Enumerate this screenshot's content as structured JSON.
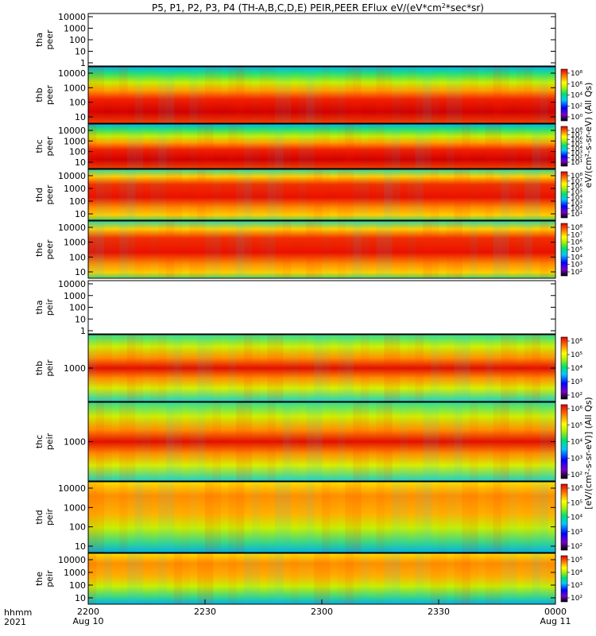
{
  "title": "P5, P1, P2, P3, P4 (TH-A,B,C,D,E) PEIR,PEER EFlux eV/(eV*cm²*sec*sr)",
  "title_parts": {
    "pre": "P5, P1, P2, P3, P4 (TH-A,B,C,D,E) PEIR,PEER EFlux eV/(eV*cm",
    "sup": "2",
    "post": "*sec*sr)"
  },
  "time_axis": {
    "label_line1": "hhmm",
    "label_line2": "2021",
    "ticks": [
      {
        "label": "2200",
        "sublabel": "Aug 10"
      },
      {
        "label": "2230",
        "sublabel": ""
      },
      {
        "label": "2300",
        "sublabel": ""
      },
      {
        "label": "2330",
        "sublabel": ""
      },
      {
        "label": "0000",
        "sublabel": "Aug 11"
      }
    ]
  },
  "colorbar_labels": {
    "electrons": "eV/(cm²-s-sr-eV) (All Qs)",
    "ions": "[eV/(cm²-s-sr-eV)] (All Qs)"
  },
  "chart_data": {
    "type": "heatmap",
    "title": "P5, P1, P2, P3, P4 (TH-A,B,C,D,E) PEIR,PEER EFlux eV/(eV*cm²*sec*sr)",
    "x": {
      "start": "2021-08-10 22:00",
      "end": "2021-08-11 00:00"
    },
    "panels": [
      {
        "id": "tha_peer",
        "label1": "tha",
        "label2": "peer",
        "type": "empty",
        "yscale": "log",
        "yticks": [
          "10000",
          "1000",
          "100",
          "10",
          "1"
        ],
        "colorbar": false
      },
      {
        "id": "thb_peer",
        "label1": "thb",
        "label2": "peer",
        "type": "electron",
        "yscale": "log",
        "yticks": [
          "10000",
          "1000",
          "100",
          "10"
        ],
        "colorbar": true,
        "cbar_ticks": [
          "10⁸",
          "10⁶",
          "10⁴",
          "10²",
          "10⁰"
        ]
      },
      {
        "id": "thc_peer",
        "label1": "thc",
        "label2": "peer",
        "type": "electron",
        "yscale": "log",
        "yticks": [
          "10000",
          "1000",
          "100",
          "10"
        ],
        "colorbar": true,
        "cbar_ticks": [
          "10⁸",
          "10⁷",
          "10⁶",
          "10⁵",
          "10⁴",
          "10³",
          "10²",
          "10¹"
        ]
      },
      {
        "id": "thd_peer",
        "label1": "thd",
        "label2": "peer",
        "type": "electron-active",
        "yscale": "log",
        "yticks": [
          "10000",
          "1000",
          "100",
          "10"
        ],
        "colorbar": true,
        "cbar_ticks": [
          "10⁸",
          "10⁷",
          "10⁶",
          "10⁵",
          "10⁴",
          "10³",
          "10²",
          "10¹"
        ]
      },
      {
        "id": "the_peer",
        "label1": "the",
        "label2": "peer",
        "type": "electron-active",
        "yscale": "log",
        "yticks": [
          "10000",
          "1000",
          "100",
          "10"
        ],
        "colorbar": true,
        "cbar_ticks": [
          "10⁸",
          "10⁷",
          "10⁶",
          "10⁵",
          "10⁴",
          "10³",
          "10²"
        ]
      },
      {
        "id": "tha_peir",
        "label1": "tha",
        "label2": "peir",
        "type": "empty",
        "yscale": "log",
        "yticks": [
          "10000",
          "1000",
          "100",
          "10",
          "1"
        ],
        "colorbar": false
      },
      {
        "id": "thb_peir",
        "label1": "thb",
        "label2": "peir",
        "type": "ion",
        "yscale": "log",
        "yticks": [
          "1000"
        ],
        "colorbar": true,
        "cbar_ticks": [
          "10⁶",
          "10⁵",
          "10⁴",
          "10³",
          "10²"
        ]
      },
      {
        "id": "thc_peir",
        "label1": "thc",
        "label2": "peir",
        "type": "ion",
        "yscale": "log",
        "yticks": [
          "1000"
        ],
        "colorbar": true,
        "cbar_ticks": [
          "10⁶",
          "10⁵",
          "10⁴",
          "10³",
          "10²"
        ]
      },
      {
        "id": "thd_peir",
        "label1": "thd",
        "label2": "peir",
        "type": "ion-wide",
        "yscale": "log",
        "yticks": [
          "10000",
          "1000",
          "100",
          "10"
        ],
        "colorbar": true,
        "cbar_ticks": [
          "10⁶",
          "10⁵",
          "10⁴",
          "10³",
          "10²"
        ]
      },
      {
        "id": "the_peir",
        "label1": "the",
        "label2": "peir",
        "type": "ion-wide",
        "yscale": "log",
        "yticks": [
          "10000",
          "1000",
          "100",
          "10"
        ],
        "colorbar": true,
        "cbar_ticks": [
          "10⁵",
          "10⁴",
          "10³",
          "10²"
        ]
      }
    ]
  }
}
